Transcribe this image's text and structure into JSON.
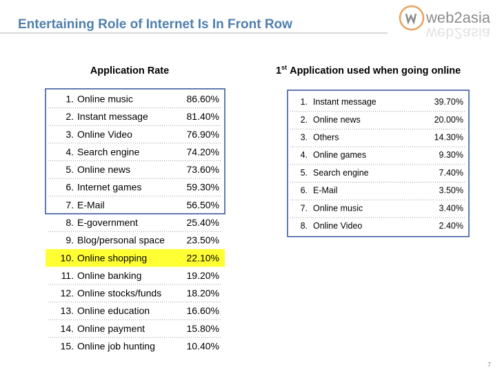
{
  "header": {
    "title": "Entertaining Role of Internet Is In Front Row",
    "logo": "web2asia"
  },
  "left": {
    "heading": "Application Rate",
    "rows": [
      [
        "1.",
        "Online music",
        "86.60%"
      ],
      [
        "2.",
        "Instant message",
        "81.40%"
      ],
      [
        "3.",
        "Online Video",
        "76.90%"
      ],
      [
        "4.",
        "Search engine",
        "74.20%"
      ],
      [
        "5.",
        "Online news",
        "73.60%"
      ],
      [
        "6.",
        "Internet games",
        "59.30%"
      ],
      [
        "7.",
        "E-Mail",
        "56.50%"
      ],
      [
        "8.",
        "E-government",
        "25.40%"
      ],
      [
        "9.",
        "Blog/personal space",
        "23.50%"
      ],
      [
        "10.",
        "Online shopping",
        "22.10%"
      ],
      [
        "11.",
        "Online banking",
        "19.20%"
      ],
      [
        "12.",
        "Online stocks/funds",
        "18.20%"
      ],
      [
        "13.",
        "Online education",
        "16.60%"
      ],
      [
        "14.",
        "Online payment",
        "15.80%"
      ],
      [
        "15.",
        "Online job hunting",
        "10.40%"
      ]
    ]
  },
  "right": {
    "heading": {
      "prefix": "1",
      "superscript": "st",
      "text": "Application used when going online"
    },
    "rows": [
      [
        "1.",
        "Instant message",
        "39.70%"
      ],
      [
        "2.",
        "Online news",
        "20.00%"
      ],
      [
        "3.",
        "Others",
        "14.30%"
      ],
      [
        "4.",
        "Online games",
        "9.30%"
      ],
      [
        "5.",
        "Search engine",
        "7.40%"
      ],
      [
        "6.",
        "E-Mail",
        "3.50%"
      ],
      [
        "7.",
        "Online music",
        "3.40%"
      ],
      [
        "8.",
        "Online Video",
        "2.40%"
      ]
    ]
  },
  "page_number": "7"
}
